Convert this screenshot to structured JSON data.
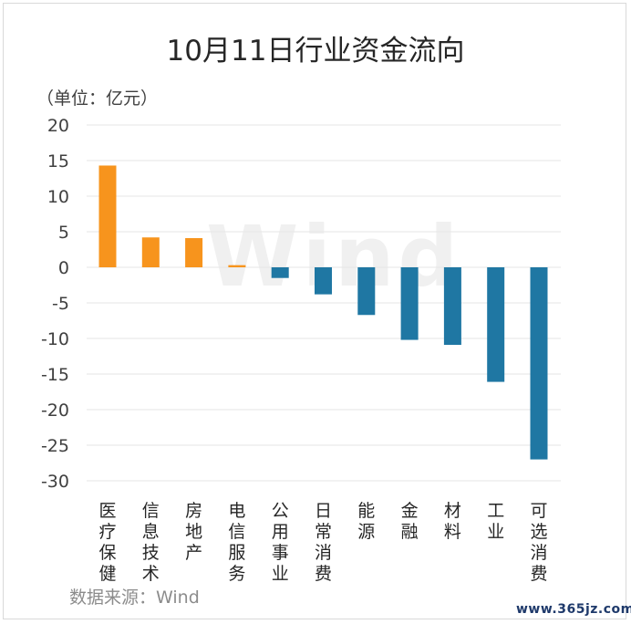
{
  "title": "10月11日行业资金流向",
  "unit_label": "（单位：亿元）",
  "source_label": "数据来源：Wind",
  "watermark": "Wind",
  "site_label": "www.365jz.com",
  "colors": {
    "positive": "#f7941d",
    "negative": "#1f77a3",
    "grid": "#e6e6e6"
  },
  "chart_data": {
    "type": "bar",
    "title": "10月11日行业资金流向",
    "ylabel": "（单位：亿元）",
    "xlabel": "",
    "ylim": [
      -30,
      20
    ],
    "yticks": [
      20,
      15,
      10,
      5,
      0,
      -5,
      -10,
      -15,
      -20,
      -25,
      -30
    ],
    "grid": true,
    "categories": [
      "医疗保健",
      "信息技术",
      "房地产",
      "电信服务",
      "公用事业",
      "日常消费",
      "能源",
      "金融",
      "材料",
      "工业",
      "可选消费"
    ],
    "values": [
      14.3,
      4.2,
      4.1,
      0.3,
      -1.5,
      -3.8,
      -6.7,
      -10.2,
      -10.9,
      -16.1,
      -27.0
    ]
  }
}
